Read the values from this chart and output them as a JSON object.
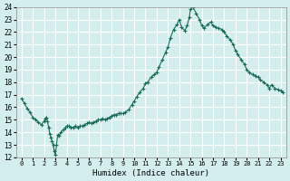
{
  "xlabel": "Humidex (Indice chaleur)",
  "ylabel": "",
  "xlim": [
    -0.5,
    23.5
  ],
  "ylim": [
    12,
    24
  ],
  "yticks": [
    12,
    13,
    14,
    15,
    16,
    17,
    18,
    19,
    20,
    21,
    22,
    23,
    24
  ],
  "xticks": [
    0,
    1,
    2,
    3,
    4,
    5,
    6,
    7,
    8,
    9,
    10,
    11,
    12,
    13,
    14,
    15,
    16,
    17,
    18,
    19,
    20,
    21,
    22,
    23
  ],
  "bg_color": "#d4eeee",
  "grid_color": "#ffffff",
  "line_color": "#1a6b5a",
  "marker_color": "#1a6b5a",
  "x": [
    0,
    0.25,
    0.5,
    0.75,
    1.0,
    1.25,
    1.5,
    1.75,
    2.0,
    2.1,
    2.2,
    2.3,
    2.4,
    2.5,
    2.6,
    2.7,
    2.8,
    2.9,
    3.0,
    3.1,
    3.2,
    3.3,
    3.5,
    3.7,
    3.9,
    4.0,
    4.2,
    4.4,
    4.6,
    4.8,
    5.0,
    5.2,
    5.4,
    5.6,
    5.8,
    6.0,
    6.2,
    6.4,
    6.6,
    6.8,
    7.0,
    7.2,
    7.4,
    7.6,
    7.8,
    8.0,
    8.2,
    8.4,
    8.6,
    8.8,
    9.0,
    9.2,
    9.5,
    9.8,
    10.0,
    10.2,
    10.5,
    10.8,
    11.0,
    11.2,
    11.5,
    11.8,
    12.0,
    12.2,
    12.5,
    12.8,
    13.0,
    13.2,
    13.5,
    13.8,
    14.0,
    14.2,
    14.5,
    14.7,
    14.9,
    15.0,
    15.2,
    15.5,
    15.8,
    16.0,
    16.2,
    16.5,
    16.8,
    17.0,
    17.2,
    17.5,
    17.8,
    18.0,
    18.2,
    18.5,
    18.8,
    19.0,
    19.2,
    19.5,
    19.8,
    20.0,
    20.2,
    20.5,
    20.8,
    21.0,
    21.2,
    21.5,
    21.8,
    22.0,
    22.2,
    22.5,
    22.8,
    23.0,
    23.2
  ],
  "y": [
    16.7,
    16.3,
    15.9,
    15.6,
    15.2,
    15.0,
    14.8,
    14.6,
    14.9,
    15.1,
    15.2,
    14.9,
    14.4,
    13.9,
    13.6,
    13.3,
    13.0,
    12.5,
    12.2,
    13.0,
    13.8,
    13.7,
    14.0,
    14.2,
    14.4,
    14.5,
    14.5,
    14.4,
    14.4,
    14.5,
    14.4,
    14.5,
    14.5,
    14.6,
    14.7,
    14.8,
    14.7,
    14.8,
    14.9,
    15.0,
    15.0,
    15.1,
    15.0,
    15.1,
    15.2,
    15.3,
    15.4,
    15.4,
    15.5,
    15.5,
    15.5,
    15.6,
    15.8,
    16.2,
    16.5,
    16.8,
    17.2,
    17.5,
    17.9,
    18.0,
    18.4,
    18.6,
    18.8,
    19.2,
    19.8,
    20.4,
    20.8,
    21.5,
    22.2,
    22.6,
    23.0,
    22.4,
    22.1,
    22.5,
    23.2,
    23.8,
    24.0,
    23.5,
    23.0,
    22.5,
    22.3,
    22.6,
    22.8,
    22.5,
    22.4,
    22.3,
    22.2,
    22.0,
    21.7,
    21.4,
    21.0,
    20.5,
    20.2,
    19.8,
    19.4,
    19.0,
    18.8,
    18.6,
    18.5,
    18.4,
    18.2,
    18.0,
    17.8,
    17.5,
    17.8,
    17.5,
    17.4,
    17.3,
    17.2
  ]
}
